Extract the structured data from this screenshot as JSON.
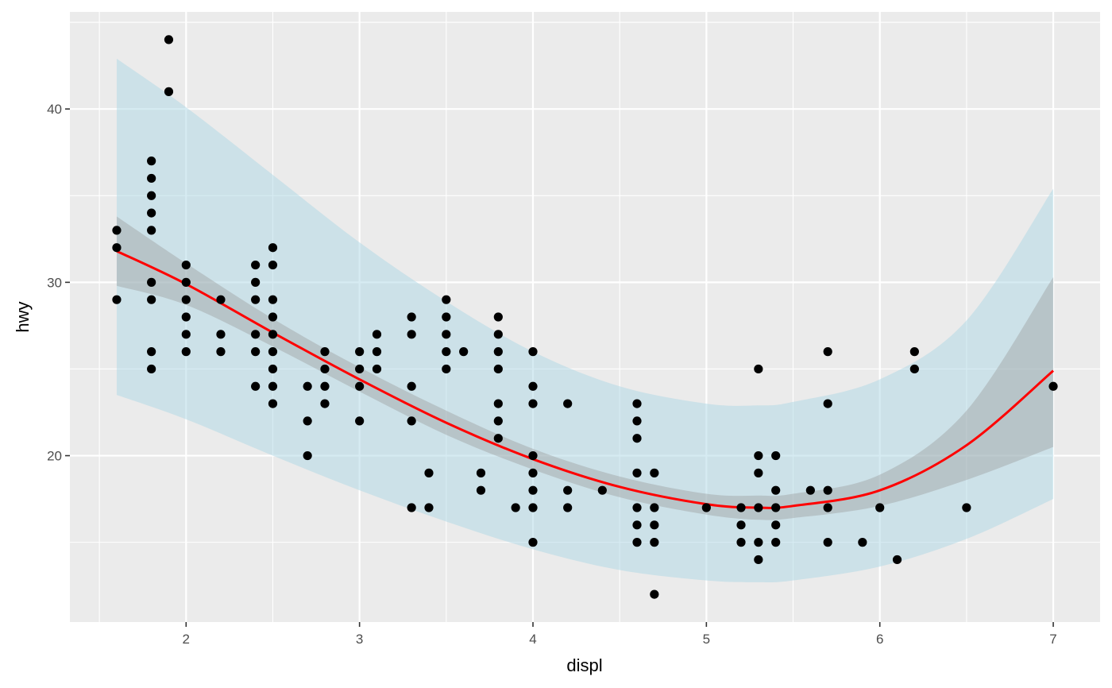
{
  "chart_data": {
    "type": "scatter",
    "title": "",
    "xlabel": "displ",
    "ylabel": "hwy",
    "xlim": [
      1.33,
      7.27
    ],
    "ylim": [
      10.4,
      45.6
    ],
    "x_ticks": [
      2,
      3,
      4,
      5,
      6,
      7
    ],
    "y_ticks": [
      20,
      30,
      40
    ],
    "grid": true,
    "legend": "none",
    "points": [
      [
        1.6,
        33
      ],
      [
        1.6,
        32
      ],
      [
        1.6,
        29
      ],
      [
        1.8,
        37
      ],
      [
        1.8,
        36
      ],
      [
        1.8,
        35
      ],
      [
        1.8,
        34
      ],
      [
        1.8,
        33
      ],
      [
        1.8,
        30
      ],
      [
        1.8,
        29
      ],
      [
        1.8,
        26
      ],
      [
        1.8,
        25
      ],
      [
        1.9,
        44
      ],
      [
        1.9,
        41
      ],
      [
        2.0,
        31
      ],
      [
        2.0,
        30
      ],
      [
        2.0,
        29
      ],
      [
        2.0,
        28
      ],
      [
        2.0,
        27
      ],
      [
        2.0,
        26
      ],
      [
        2.2,
        29
      ],
      [
        2.2,
        27
      ],
      [
        2.2,
        26
      ],
      [
        2.4,
        31
      ],
      [
        2.4,
        30
      ],
      [
        2.4,
        29
      ],
      [
        2.4,
        27
      ],
      [
        2.4,
        26
      ],
      [
        2.4,
        24
      ],
      [
        2.5,
        32
      ],
      [
        2.5,
        31
      ],
      [
        2.5,
        29
      ],
      [
        2.5,
        28
      ],
      [
        2.5,
        27
      ],
      [
        2.5,
        26
      ],
      [
        2.5,
        25
      ],
      [
        2.5,
        24
      ],
      [
        2.5,
        23
      ],
      [
        2.7,
        24
      ],
      [
        2.7,
        22
      ],
      [
        2.7,
        20
      ],
      [
        2.8,
        26
      ],
      [
        2.8,
        25
      ],
      [
        2.8,
        24
      ],
      [
        2.8,
        23
      ],
      [
        3.0,
        26
      ],
      [
        3.0,
        25
      ],
      [
        3.0,
        24
      ],
      [
        3.0,
        22
      ],
      [
        3.1,
        27
      ],
      [
        3.1,
        26
      ],
      [
        3.1,
        25
      ],
      [
        3.3,
        28
      ],
      [
        3.3,
        27
      ],
      [
        3.3,
        24
      ],
      [
        3.3,
        22
      ],
      [
        3.3,
        17
      ],
      [
        3.4,
        19
      ],
      [
        3.4,
        17
      ],
      [
        3.5,
        29
      ],
      [
        3.5,
        28
      ],
      [
        3.5,
        27
      ],
      [
        3.5,
        26
      ],
      [
        3.5,
        25
      ],
      [
        3.6,
        26
      ],
      [
        3.7,
        19
      ],
      [
        3.7,
        18
      ],
      [
        3.8,
        28
      ],
      [
        3.8,
        27
      ],
      [
        3.8,
        26
      ],
      [
        3.8,
        25
      ],
      [
        3.8,
        23
      ],
      [
        3.8,
        22
      ],
      [
        3.8,
        21
      ],
      [
        3.9,
        17
      ],
      [
        4.0,
        26
      ],
      [
        4.0,
        24
      ],
      [
        4.0,
        23
      ],
      [
        4.0,
        20
      ],
      [
        4.0,
        19
      ],
      [
        4.0,
        18
      ],
      [
        4.0,
        17
      ],
      [
        4.0,
        15
      ],
      [
        4.2,
        23
      ],
      [
        4.2,
        18
      ],
      [
        4.2,
        17
      ],
      [
        4.4,
        18
      ],
      [
        4.6,
        23
      ],
      [
        4.6,
        22
      ],
      [
        4.6,
        21
      ],
      [
        4.6,
        19
      ],
      [
        4.6,
        17
      ],
      [
        4.6,
        16
      ],
      [
        4.6,
        15
      ],
      [
        4.7,
        19
      ],
      [
        4.7,
        17
      ],
      [
        4.7,
        16
      ],
      [
        4.7,
        15
      ],
      [
        4.7,
        12
      ],
      [
        5.0,
        17
      ],
      [
        5.2,
        17
      ],
      [
        5.2,
        16
      ],
      [
        5.2,
        15
      ],
      [
        5.3,
        25
      ],
      [
        5.3,
        20
      ],
      [
        5.3,
        19
      ],
      [
        5.3,
        17
      ],
      [
        5.3,
        15
      ],
      [
        5.3,
        14
      ],
      [
        5.4,
        20
      ],
      [
        5.4,
        18
      ],
      [
        5.4,
        17
      ],
      [
        5.4,
        16
      ],
      [
        5.4,
        15
      ],
      [
        5.6,
        18
      ],
      [
        5.7,
        26
      ],
      [
        5.7,
        23
      ],
      [
        5.7,
        18
      ],
      [
        5.7,
        17
      ],
      [
        5.7,
        15
      ],
      [
        5.9,
        15
      ],
      [
        6.0,
        17
      ],
      [
        6.1,
        14
      ],
      [
        6.2,
        26
      ],
      [
        6.2,
        25
      ],
      [
        6.5,
        17
      ],
      [
        7.0,
        24
      ]
    ],
    "fit_line": {
      "color": "#ff0000",
      "x": [
        1.6,
        2.0,
        2.5,
        3.0,
        3.5,
        4.0,
        4.5,
        5.0,
        5.3,
        5.5,
        6.0,
        6.5,
        7.0
      ],
      "y": [
        31.8,
        29.9,
        27.1,
        24.4,
        21.9,
        19.8,
        18.2,
        17.2,
        17.0,
        17.1,
        18.0,
        20.6,
        24.9
      ]
    },
    "confidence_band": {
      "color": "#999999",
      "x": [
        1.6,
        2.0,
        2.5,
        3.0,
        3.5,
        4.0,
        4.5,
        5.0,
        5.3,
        5.5,
        6.0,
        6.5,
        7.0
      ],
      "lower": [
        29.8,
        28.7,
        26.3,
        23.7,
        21.2,
        19.2,
        17.6,
        16.6,
        16.3,
        16.4,
        17.1,
        18.6,
        20.5
      ],
      "upper": [
        33.8,
        31.1,
        27.9,
        25.1,
        22.6,
        20.4,
        18.8,
        17.8,
        17.7,
        17.8,
        18.9,
        22.6,
        30.3
      ]
    },
    "prediction_band": {
      "color": "#add8e6",
      "x": [
        1.6,
        2.0,
        2.5,
        3.0,
        3.5,
        4.0,
        4.5,
        5.0,
        5.3,
        5.5,
        6.0,
        6.5,
        7.0
      ],
      "lower": [
        23.5,
        22.1,
        20.0,
        18.0,
        16.2,
        14.6,
        13.4,
        12.8,
        12.7,
        12.8,
        13.6,
        15.2,
        17.5
      ],
      "upper": [
        42.9,
        40.1,
        36.2,
        32.3,
        28.9,
        26.0,
        24.0,
        23.0,
        22.9,
        23.1,
        24.4,
        27.8,
        35.4
      ]
    }
  }
}
